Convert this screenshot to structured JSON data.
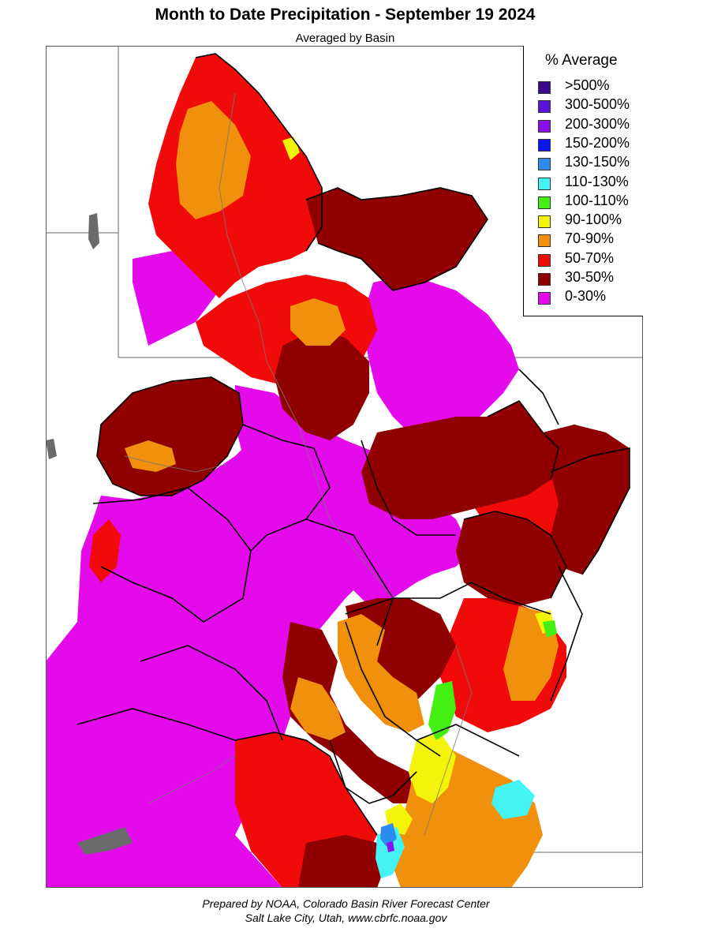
{
  "header": {
    "title": "Month to Date Precipitation - September 19 2024",
    "subtitle": "Averaged by Basin"
  },
  "legend": {
    "title": "% Average",
    "items": [
      {
        "label": ">500%",
        "color": "#3a0a8c"
      },
      {
        "label": "300-500%",
        "color": "#5a14d8"
      },
      {
        "label": "200-300%",
        "color": "#8a10f0"
      },
      {
        "label": "150-200%",
        "color": "#0a14f0"
      },
      {
        "label": "130-150%",
        "color": "#2e8cf0"
      },
      {
        "label": "110-130%",
        "color": "#44f4f4"
      },
      {
        "label": "100-110%",
        "color": "#44f014"
      },
      {
        "label": "90-100%",
        "color": "#f4f40a"
      },
      {
        "label": "70-90%",
        "color": "#f0900c"
      },
      {
        "label": "50-70%",
        "color": "#f00a0a"
      },
      {
        "label": "30-50%",
        "color": "#900000"
      },
      {
        "label": "0-30%",
        "color": "#e40aec"
      }
    ]
  },
  "footer": {
    "line1": "Prepared by NOAA, Colorado Basin River Forecast Center",
    "line2": "Salt Lake City, Utah, www.cbrfc.noaa.gov"
  }
}
